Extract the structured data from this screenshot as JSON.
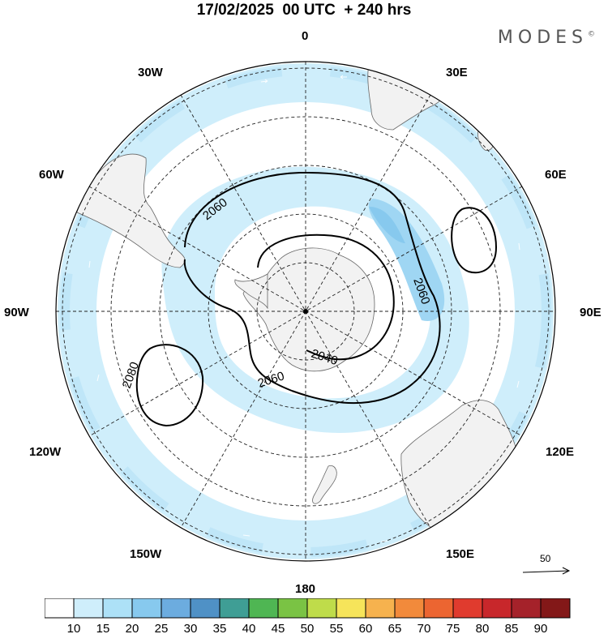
{
  "title": "17/02/2025  00 UTC  + 240 hrs",
  "brand": "MODES",
  "brand_mark": "©",
  "longitude_labels": {
    "top": "0",
    "upper_left": "30W",
    "upper_right": "30E",
    "left_upper": "60W",
    "right_upper": "60E",
    "left": "90W",
    "right": "90E",
    "left_lower": "120W",
    "right_lower": "120E",
    "lower_left": "150W",
    "lower_right": "150E",
    "bottom": "180"
  },
  "contour_labels": [
    "2060",
    "2060",
    "2040",
    "2060",
    "2080"
  ],
  "vector_scale": "50",
  "colorbar": {
    "ticks": [
      "10",
      "15",
      "20",
      "25",
      "30",
      "35",
      "40",
      "45",
      "50",
      "55",
      "60",
      "65",
      "70",
      "75",
      "80",
      "85",
      "90"
    ],
    "colors": [
      "#ffffff",
      "#cfeefb",
      "#ade1f7",
      "#87c9ee",
      "#6cacdf",
      "#4f91c6",
      "#3f9e95",
      "#4fb653",
      "#7ac344",
      "#bfdc4a",
      "#f6e45a",
      "#f6b24e",
      "#f28a3b",
      "#ec6531",
      "#e03b2e",
      "#c8272b",
      "#a5222a",
      "#831818"
    ]
  }
}
